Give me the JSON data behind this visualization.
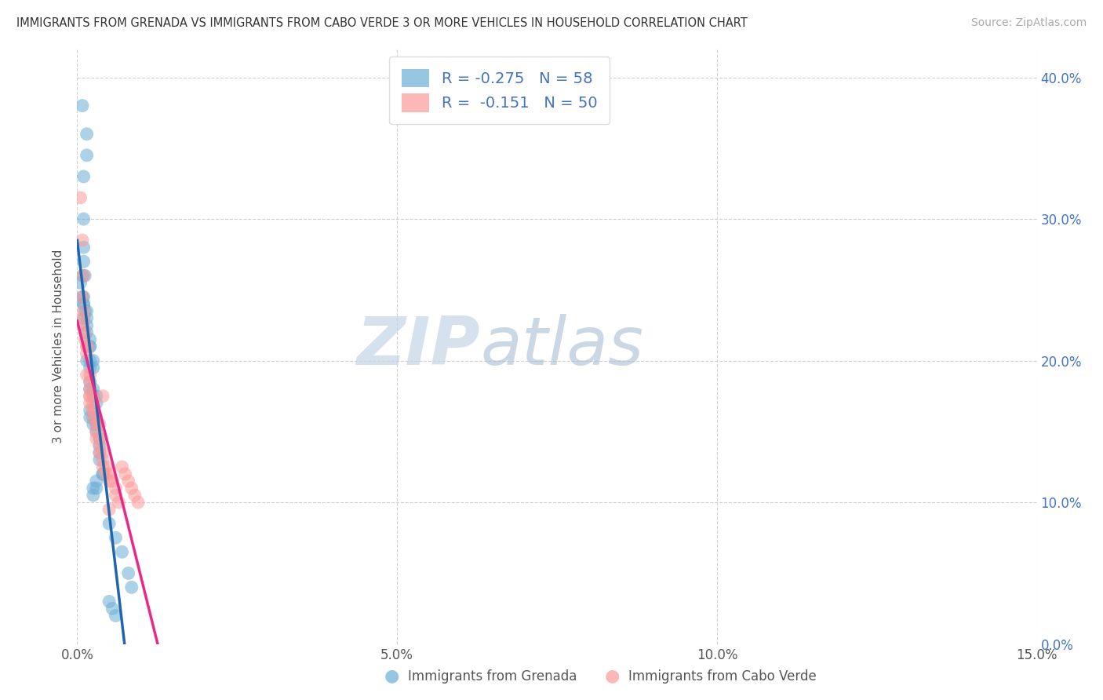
{
  "title": "IMMIGRANTS FROM GRENADA VS IMMIGRANTS FROM CABO VERDE 3 OR MORE VEHICLES IN HOUSEHOLD CORRELATION CHART",
  "source": "Source: ZipAtlas.com",
  "ylabel": "3 or more Vehicles in Household",
  "xlabel_grenada": "Immigrants from Grenada",
  "xlabel_caboverde": "Immigrants from Cabo Verde",
  "xmin": 0.0,
  "xmax": 0.15,
  "ymin": 0.0,
  "ymax": 0.42,
  "ytick_labels": [
    "0.0%",
    "10.0%",
    "20.0%",
    "30.0%",
    "40.0%"
  ],
  "ytick_vals": [
    0.0,
    0.1,
    0.2,
    0.3,
    0.4
  ],
  "xtick_labels": [
    "0.0%",
    "5.0%",
    "10.0%",
    "15.0%"
  ],
  "xtick_vals": [
    0.0,
    0.05,
    0.1,
    0.15
  ],
  "legend_r_grenada": "-0.275",
  "legend_n_grenada": "58",
  "legend_r_caboverde": "-0.151",
  "legend_n_caboverde": "50",
  "color_grenada": "#6baed6",
  "color_caboverde": "#fb9a99",
  "color_line_grenada": "#2166ac",
  "color_line_caboverde": "#e7298a",
  "watermark_zip": "ZIP",
  "watermark_atlas": "atlas",
  "grenada_x": [
    0.0008,
    0.0015,
    0.0015,
    0.001,
    0.001,
    0.001,
    0.001,
    0.0012,
    0.0008,
    0.0005,
    0.0008,
    0.001,
    0.001,
    0.001,
    0.0012,
    0.0015,
    0.0015,
    0.001,
    0.0015,
    0.0015,
    0.002,
    0.002,
    0.002,
    0.0015,
    0.002,
    0.0025,
    0.0025,
    0.002,
    0.002,
    0.002,
    0.0025,
    0.0025,
    0.003,
    0.003,
    0.002,
    0.002,
    0.0025,
    0.0025,
    0.003,
    0.003,
    0.0035,
    0.0035,
    0.0035,
    0.0035,
    0.004,
    0.004,
    0.003,
    0.003,
    0.0025,
    0.0025,
    0.005,
    0.006,
    0.007,
    0.008,
    0.0085,
    0.005,
    0.0055,
    0.006
  ],
  "grenada_y": [
    0.38,
    0.36,
    0.345,
    0.33,
    0.3,
    0.28,
    0.27,
    0.26,
    0.26,
    0.255,
    0.245,
    0.245,
    0.24,
    0.24,
    0.235,
    0.235,
    0.23,
    0.23,
    0.225,
    0.22,
    0.215,
    0.21,
    0.21,
    0.2,
    0.2,
    0.2,
    0.195,
    0.195,
    0.185,
    0.18,
    0.18,
    0.175,
    0.175,
    0.17,
    0.165,
    0.16,
    0.16,
    0.155,
    0.155,
    0.15,
    0.145,
    0.14,
    0.135,
    0.13,
    0.12,
    0.12,
    0.115,
    0.11,
    0.11,
    0.105,
    0.085,
    0.075,
    0.065,
    0.05,
    0.04,
    0.03,
    0.025,
    0.02
  ],
  "caboverde_x": [
    0.0005,
    0.0008,
    0.001,
    0.0008,
    0.001,
    0.001,
    0.001,
    0.0012,
    0.0012,
    0.0015,
    0.0015,
    0.0015,
    0.0015,
    0.002,
    0.002,
    0.002,
    0.002,
    0.002,
    0.002,
    0.0025,
    0.0025,
    0.0025,
    0.0025,
    0.003,
    0.003,
    0.003,
    0.003,
    0.0035,
    0.0035,
    0.0035,
    0.004,
    0.004,
    0.004,
    0.0045,
    0.0045,
    0.005,
    0.005,
    0.0055,
    0.006,
    0.006,
    0.0065,
    0.004,
    0.0035,
    0.005,
    0.007,
    0.0075,
    0.008,
    0.0085,
    0.009,
    0.0095
  ],
  "caboverde_y": [
    0.315,
    0.285,
    0.26,
    0.245,
    0.235,
    0.23,
    0.225,
    0.22,
    0.215,
    0.21,
    0.21,
    0.205,
    0.19,
    0.19,
    0.185,
    0.18,
    0.175,
    0.175,
    0.17,
    0.17,
    0.165,
    0.165,
    0.16,
    0.16,
    0.155,
    0.15,
    0.145,
    0.145,
    0.14,
    0.135,
    0.135,
    0.13,
    0.125,
    0.125,
    0.12,
    0.12,
    0.115,
    0.115,
    0.11,
    0.105,
    0.1,
    0.175,
    0.155,
    0.095,
    0.125,
    0.12,
    0.115,
    0.11,
    0.105,
    0.1
  ]
}
